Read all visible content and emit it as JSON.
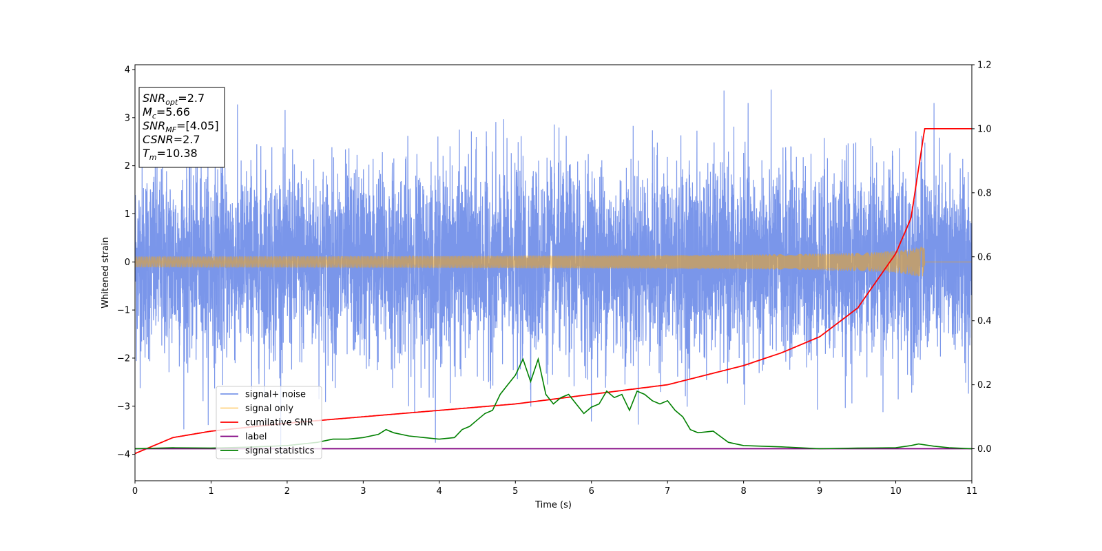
{
  "chart_data": {
    "type": "line",
    "xlabel": "Time (s)",
    "ylabel": "Whitened strain",
    "xlim": [
      0,
      11
    ],
    "ylim": [
      -4.55,
      4.1
    ],
    "y2lim": [
      -0.1,
      1.2
    ],
    "x_ticks": [
      "0",
      "1",
      "2",
      "3",
      "4",
      "5",
      "6",
      "7",
      "8",
      "9",
      "10",
      "11"
    ],
    "y_ticks": [
      "−4",
      "−3",
      "−2",
      "−1",
      "0",
      "1",
      "2",
      "3",
      "4"
    ],
    "y2_ticks": [
      "0.0",
      "0.2",
      "0.4",
      "0.6",
      "0.8",
      "1.0",
      "1.2"
    ],
    "grid": false,
    "legend_position": "lower-left",
    "info_box": [
      {
        "base": "SNR",
        "sub": "opt",
        "rest": "=2.7"
      },
      {
        "base": "M",
        "sub": "c",
        "rest": "=5.66"
      },
      {
        "base": "SNR",
        "sub": "MF",
        "rest": "=[4.05]"
      },
      {
        "base": "CSNR",
        "sub": "",
        "rest": "=2.7"
      },
      {
        "base": "T",
        "sub": "m",
        "rest": "=10.38"
      }
    ],
    "series": [
      {
        "name": "signal+ noise",
        "color": "#4169e1",
        "axis": "left",
        "style": "gaussian-noise",
        "envelope_typical": 2.0,
        "peaks_max": 3.66,
        "troughs_min": -4.16
      },
      {
        "name": "signal only",
        "color": "#ffa500",
        "axis": "left",
        "style": "chirp",
        "merger_time": 10.38,
        "peak_amplitude": 0.3
      },
      {
        "name": "cumilative SNR",
        "color": "#ff0000",
        "axis": "right",
        "x": [
          0,
          0.5,
          1,
          2,
          3,
          4,
          5,
          6,
          7,
          8,
          8.5,
          9,
          9.5,
          10,
          10.2,
          10.38,
          11
        ],
        "y": [
          -0.015,
          0.035,
          0.055,
          0.08,
          0.1,
          0.12,
          0.14,
          0.17,
          0.2,
          0.26,
          0.3,
          0.35,
          0.44,
          0.61,
          0.72,
          1.0,
          1.0
        ]
      },
      {
        "name": "label",
        "color": "#800080",
        "axis": "right",
        "x": [
          0,
          11
        ],
        "y": [
          0,
          0
        ]
      },
      {
        "name": "signal statistics",
        "color": "#008000",
        "axis": "right",
        "x": [
          0,
          0.5,
          1,
          1.5,
          2,
          2.2,
          2.4,
          2.6,
          2.8,
          3.0,
          3.2,
          3.3,
          3.4,
          3.6,
          3.8,
          4.0,
          4.2,
          4.3,
          4.4,
          4.5,
          4.6,
          4.7,
          4.8,
          4.9,
          5.0,
          5.1,
          5.2,
          5.3,
          5.4,
          5.5,
          5.6,
          5.7,
          5.8,
          5.9,
          6.0,
          6.1,
          6.2,
          6.3,
          6.4,
          6.5,
          6.6,
          6.7,
          6.8,
          6.9,
          7.0,
          7.1,
          7.2,
          7.3,
          7.4,
          7.6,
          7.8,
          8.0,
          8.5,
          9.0,
          9.5,
          10.0,
          10.2,
          10.3,
          10.5,
          10.7,
          11.0
        ],
        "y": [
          0.0,
          0.003,
          0.002,
          0.005,
          0.01,
          0.015,
          0.02,
          0.03,
          0.03,
          0.035,
          0.045,
          0.06,
          0.05,
          0.04,
          0.035,
          0.03,
          0.035,
          0.06,
          0.07,
          0.09,
          0.11,
          0.12,
          0.17,
          0.2,
          0.23,
          0.28,
          0.21,
          0.28,
          0.17,
          0.14,
          0.16,
          0.17,
          0.14,
          0.11,
          0.13,
          0.14,
          0.18,
          0.16,
          0.17,
          0.12,
          0.18,
          0.17,
          0.15,
          0.14,
          0.15,
          0.12,
          0.1,
          0.06,
          0.05,
          0.055,
          0.02,
          0.01,
          0.006,
          0.0,
          0.002,
          0.003,
          0.01,
          0.015,
          0.008,
          0.003,
          0.0
        ]
      }
    ]
  }
}
